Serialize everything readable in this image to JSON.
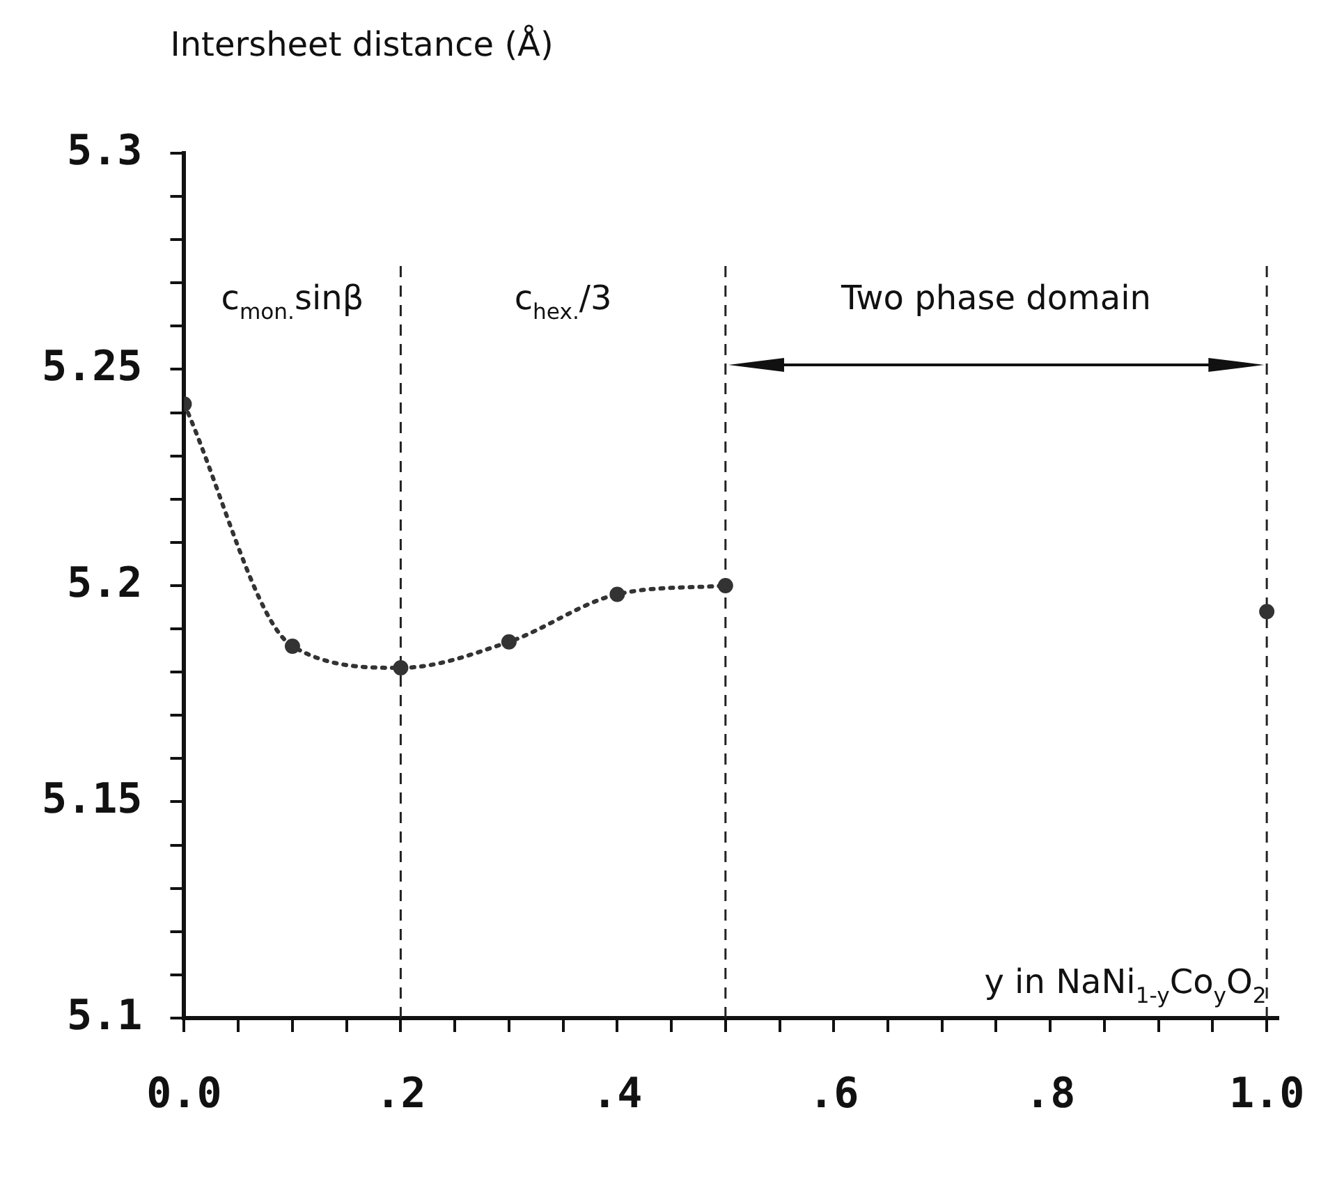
{
  "chart_data": {
    "type": "line",
    "ylabel": "Intersheet distance (Å)",
    "xlabel": "y in NaNi$_{1-y}$Co$_{y}$O$_{2}$",
    "annotations": [
      "c$_{mon.}$sinβ",
      "c$_{hex.}$/3",
      "Two phase domain"
    ],
    "series": [
      {
        "color": "#333333",
        "x": [
          0,
          0.1,
          0.2,
          0.3,
          0.4,
          0.5
        ],
        "values": [
          5.242,
          5.186,
          5.181,
          5.187,
          5.198,
          5.2
        ],
        "line_style": "dotted",
        "marker": "circle"
      },
      {
        "type": "scatter",
        "color": "#333333",
        "x": [
          1.0
        ],
        "values": [
          5.194
        ],
        "marker": "circle"
      }
    ],
    "xlim": [
      0,
      1.01
    ],
    "xticks": [
      {
        "value": 0,
        "label": "0.0"
      },
      {
        "value": 0.05,
        "label": null
      },
      {
        "value": 0.1,
        "label": null
      },
      {
        "value": 0.15,
        "label": null
      },
      {
        "value": 0.2,
        "label": ".2"
      },
      {
        "value": 0.25,
        "label": null
      },
      {
        "value": 0.3,
        "label": null
      },
      {
        "value": 0.35,
        "label": null
      },
      {
        "value": 0.4,
        "label": ".4"
      },
      {
        "value": 0.45,
        "label": null
      },
      {
        "value": 0.5,
        "label": null
      },
      {
        "value": 0.55,
        "label": null
      },
      {
        "value": 0.6,
        "label": ".6"
      },
      {
        "value": 0.65,
        "label": null
      },
      {
        "value": 0.7,
        "label": null
      },
      {
        "value": 0.75,
        "label": null
      },
      {
        "value": 0.8,
        "label": ".8"
      },
      {
        "value": 0.85,
        "label": null
      },
      {
        "value": 0.9,
        "label": null
      },
      {
        "value": 0.95,
        "label": null
      },
      {
        "value": 1.0,
        "label": "1.0"
      }
    ],
    "ylim": [
      5.1,
      5.3
    ],
    "yticks": [
      5.1,
      {
        "value": 5.11,
        "label": null
      },
      {
        "value": 5.12,
        "label": null
      },
      {
        "value": 5.13,
        "label": null
      },
      {
        "value": 5.14,
        "label": null
      },
      5.15,
      {
        "value": 5.16,
        "label": null
      },
      {
        "value": 5.17,
        "label": null
      },
      {
        "value": 5.18,
        "label": null
      },
      {
        "value": 5.19,
        "label": null
      },
      5.2,
      {
        "value": 5.21,
        "label": null
      },
      {
        "value": 5.22,
        "label": null
      },
      {
        "value": 5.23,
        "label": null
      },
      {
        "value": 5.24,
        "label": null
      },
      5.25,
      {
        "value": 5.26,
        "label": null
      },
      {
        "value": 5.27,
        "label": null
      },
      {
        "value": 5.28,
        "label": null
      },
      {
        "value": 5.29,
        "label": null
      },
      5.3
    ],
    "ref_lines": [
      {
        "axis": "x",
        "value": 0.2,
        "line_style": "dashed",
        "color": "#222222"
      },
      {
        "axis": "x",
        "value": 0.5,
        "line_style": "dashed",
        "color": "#222222"
      },
      {
        "axis": "x",
        "value": 1.0,
        "line_style": "dashed",
        "color": "#222222"
      }
    ],
    "grid": false,
    "legend": false
  }
}
